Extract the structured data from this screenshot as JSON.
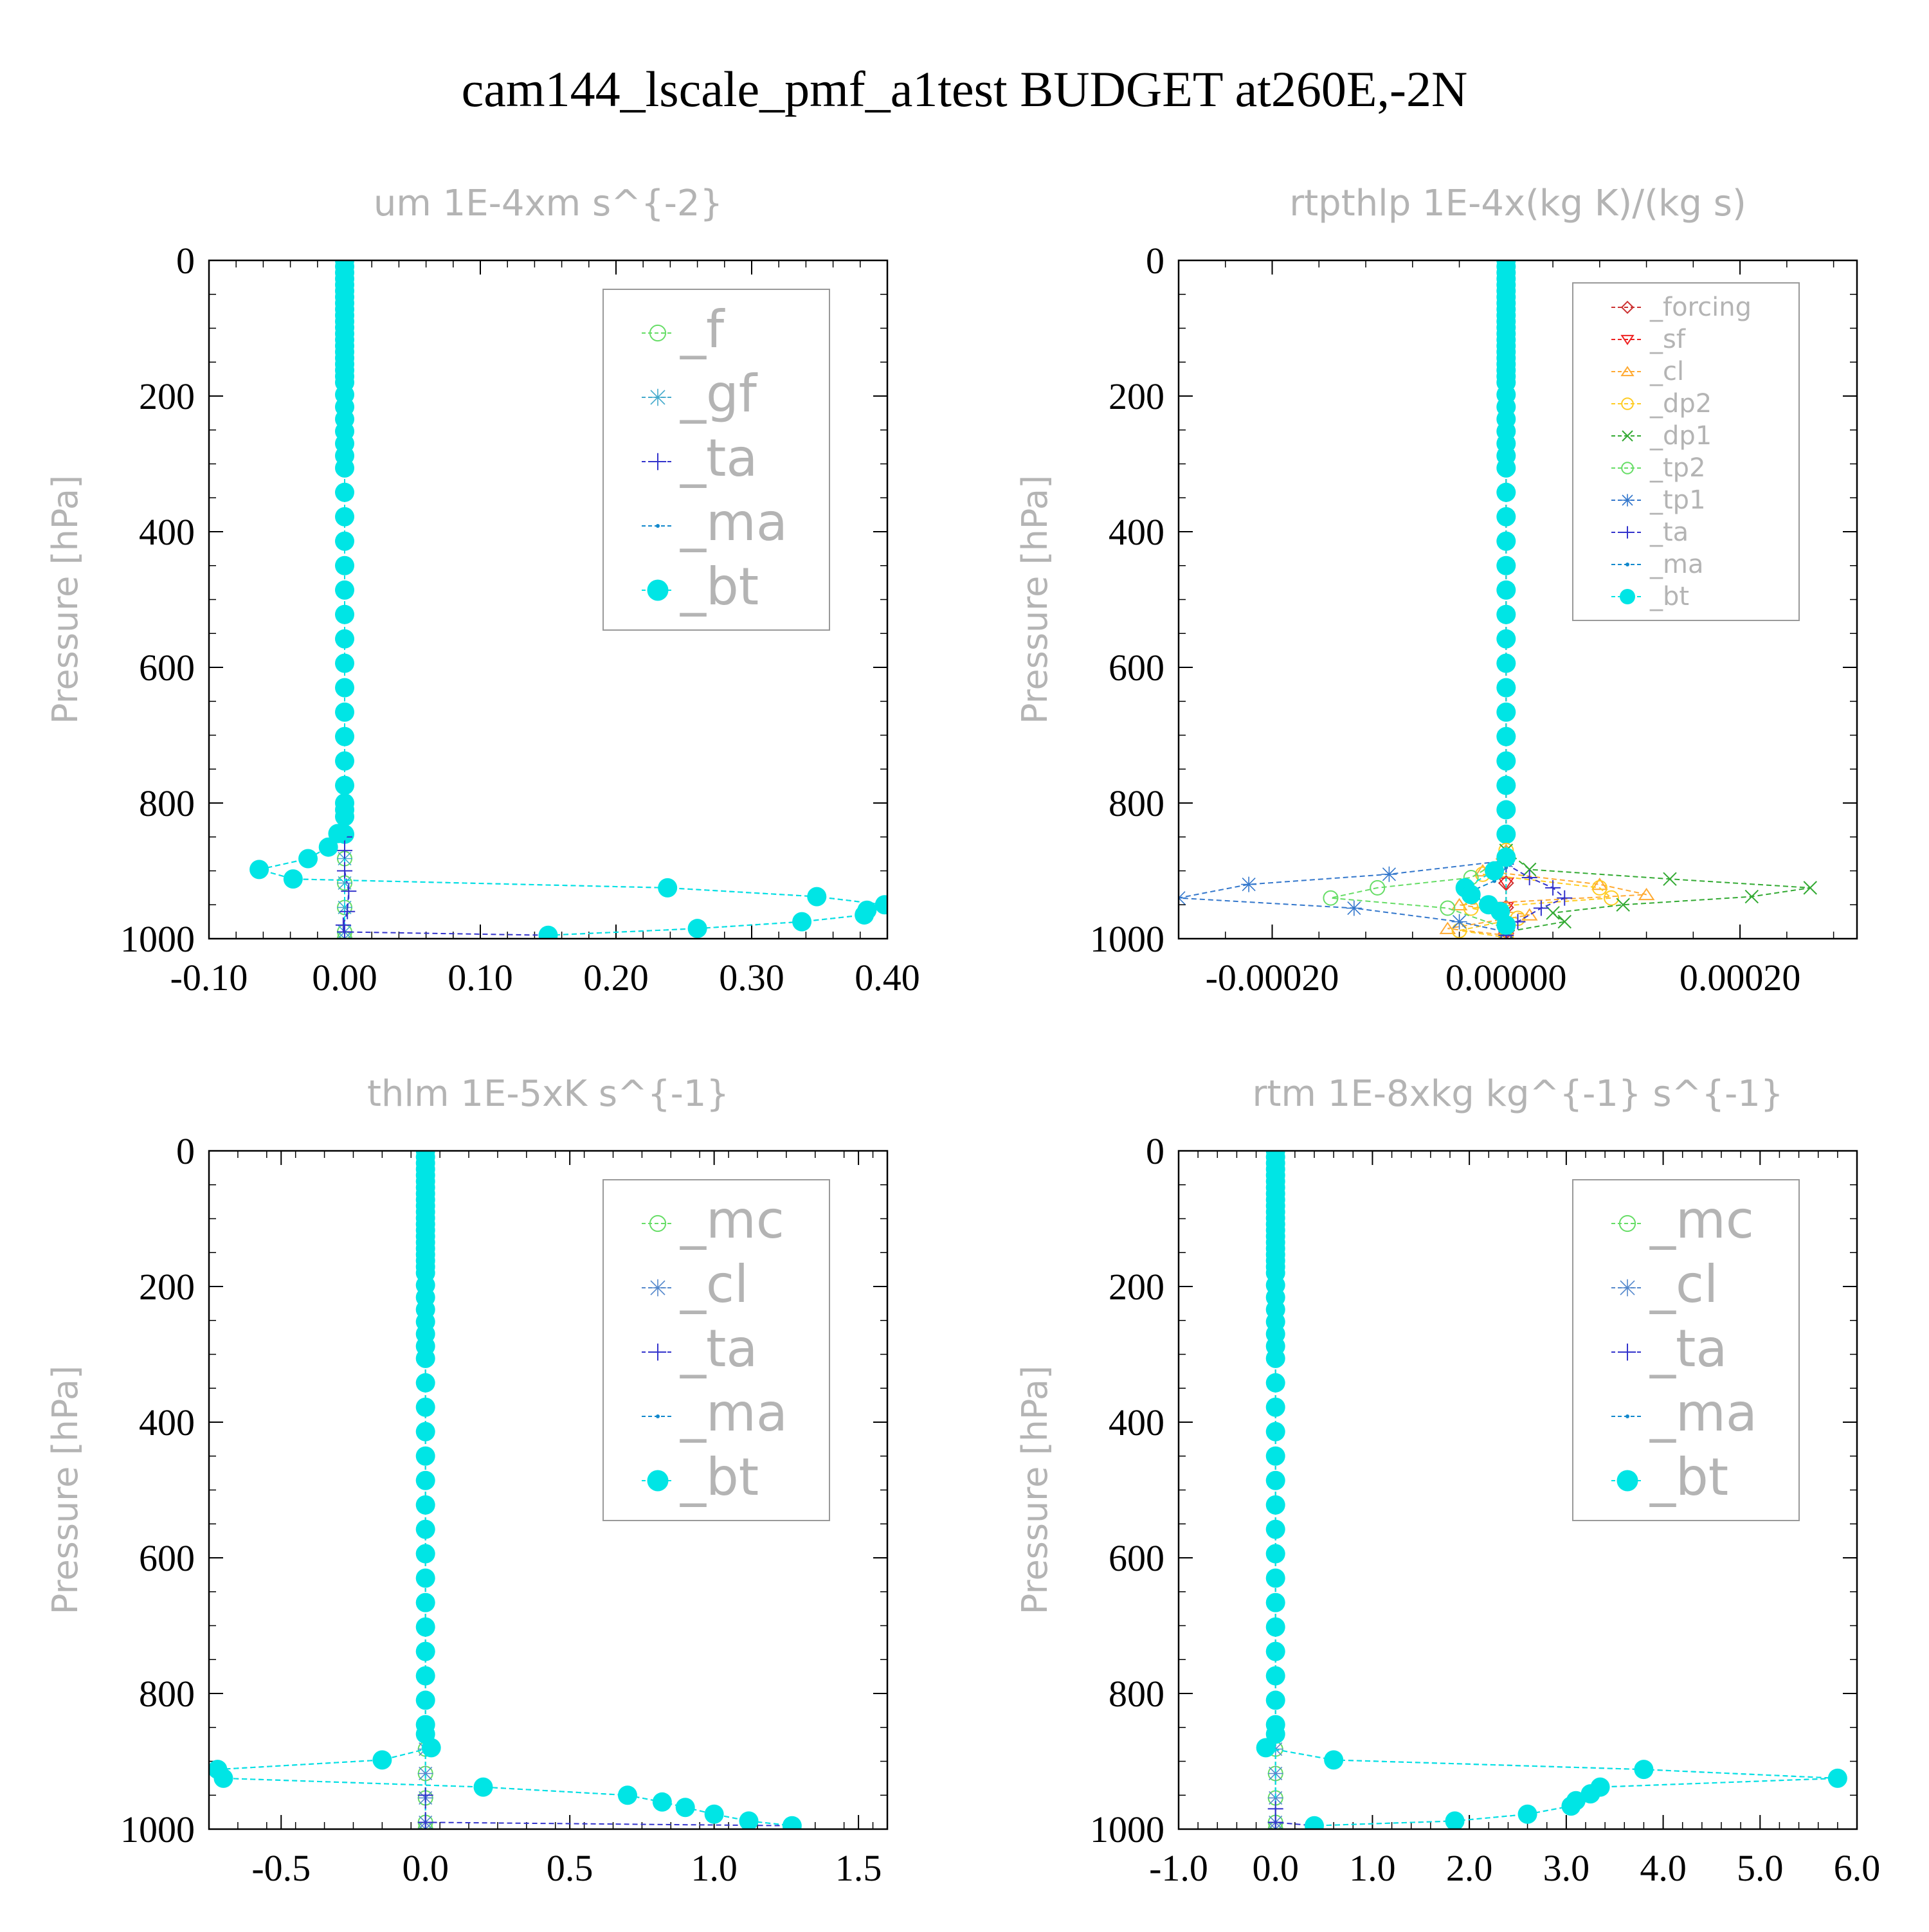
{
  "figure_title": "cam144_lscale_pmf_a1test  BUDGET at260E,-2N",
  "colors": {
    "f": "#66dd66",
    "gf": "#44aacc",
    "ta": "#3333cc",
    "ma": "#1188cc",
    "bt": "#00e5e5",
    "forcing": "#cc3333",
    "sf": "#ee2222",
    "cl": "#ffaa33",
    "dp2": "#ffcc22",
    "dp1": "#33aa33",
    "tp2": "#66dd66",
    "tp1": "#3377cc",
    "mc": "#66dd66",
    "cl_blue": "#5588cc",
    "text_gray": "#b4b4b4",
    "frame": "#000000"
  },
  "chart_data": [
    {
      "type": "line",
      "title": "um  1E-4xm s^{-2}",
      "xlabel": "",
      "ylabel": "Pressure [hPa]",
      "xlim": [
        -0.1,
        0.4
      ],
      "ylim": [
        1000,
        0
      ],
      "xticks": [
        "-0.10",
        "0.00",
        "0.10",
        "0.20",
        "0.30",
        "0.40"
      ],
      "xtick_values": [
        -0.1,
        0.0,
        0.1,
        0.2,
        0.3,
        0.4
      ],
      "yticks": [
        "0",
        "200",
        "400",
        "600",
        "800",
        "1000"
      ],
      "ytick_values": [
        0,
        200,
        400,
        600,
        800,
        1000
      ],
      "legend_placement": "top-right",
      "legend_size": "large",
      "legend": [
        {
          "label": "_f",
          "color_key": "f",
          "marker": "circle-open"
        },
        {
          "label": "_gf",
          "color_key": "gf",
          "marker": "star"
        },
        {
          "label": "_ta",
          "color_key": "ta",
          "marker": "plus"
        },
        {
          "label": "_ma",
          "color_key": "ma",
          "marker": "dot"
        },
        {
          "label": "_bt",
          "color_key": "bt",
          "marker": "circle-filled"
        }
      ],
      "series": [
        {
          "name": "_f",
          "color_key": "f",
          "marker": "circle-open",
          "zero_column": true,
          "x": [],
          "p": []
        },
        {
          "name": "_gf",
          "color_key": "gf",
          "marker": "star",
          "zero_column": true,
          "x": [],
          "p": []
        },
        {
          "name": "_ta",
          "color_key": "ta",
          "marker": "plus",
          "x": [
            0,
            0.0,
            0.0,
            0.003,
            0.002,
            -0.001,
            0.0,
            0.15
          ],
          "p": [
            850,
            870,
            900,
            930,
            960,
            980,
            990,
            995
          ]
        },
        {
          "name": "_ma",
          "color_key": "ma",
          "marker": "dot",
          "x": [
            0,
            0,
            -0.005,
            -0.012,
            -0.027,
            -0.063,
            -0.038,
            0.238,
            0.348,
            0.398,
            0.385,
            0.383,
            0.337,
            0.26,
            0.15
          ],
          "p": [
            800,
            820,
            845,
            865,
            882,
            898,
            912,
            925,
            938,
            950,
            958,
            965,
            975,
            985,
            995
          ]
        },
        {
          "name": "_bt",
          "color_key": "bt",
          "marker": "circle-filled",
          "zero_column": true,
          "x": [
            0,
            0,
            -0.005,
            -0.012,
            -0.027,
            -0.063,
            -0.038,
            0.238,
            0.348,
            0.398,
            0.385,
            0.383,
            0.337,
            0.26,
            0.15
          ],
          "p": [
            800,
            820,
            845,
            865,
            882,
            898,
            912,
            925,
            938,
            950,
            958,
            965,
            975,
            985,
            995
          ]
        }
      ]
    },
    {
      "type": "line",
      "title": "rtpthlp  1E-4x(kg K)/(kg s)",
      "xlabel": "",
      "ylabel": "Pressure [hPa]",
      "xlim": [
        -0.00028,
        0.0003
      ],
      "ylim": [
        1000,
        0
      ],
      "xticks": [
        "-0.00020",
        "0.00000",
        "0.00020"
      ],
      "xtick_values": [
        -0.0002,
        0.0,
        0.0002
      ],
      "yticks": [
        "0",
        "200",
        "400",
        "600",
        "800",
        "1000"
      ],
      "ytick_values": [
        0,
        200,
        400,
        600,
        800,
        1000
      ],
      "legend_placement": "top-right",
      "legend_size": "small",
      "legend": [
        {
          "label": "_forcing",
          "color_key": "forcing",
          "marker": "diamond"
        },
        {
          "label": "_sf",
          "color_key": "sf",
          "marker": "triangle-down"
        },
        {
          "label": "_cl",
          "color_key": "cl",
          "marker": "triangle-up"
        },
        {
          "label": "_dp2",
          "color_key": "dp2",
          "marker": "circle-open"
        },
        {
          "label": "_dp1",
          "color_key": "dp1",
          "marker": "x"
        },
        {
          "label": "_tp2",
          "color_key": "tp2",
          "marker": "circle-open"
        },
        {
          "label": "_tp1",
          "color_key": "tp1",
          "marker": "star"
        },
        {
          "label": "_ta",
          "color_key": "ta",
          "marker": "plus"
        },
        {
          "label": "_ma",
          "color_key": "ma",
          "marker": "dot"
        },
        {
          "label": "_bt",
          "color_key": "bt",
          "marker": "circle-filled"
        }
      ],
      "series": [
        {
          "name": "_forcing",
          "color_key": "forcing",
          "marker": "diamond",
          "zero_column": true,
          "x": [],
          "p": []
        },
        {
          "name": "_sf",
          "color_key": "sf",
          "marker": "triangle-down",
          "zero_column": true,
          "x": [],
          "p": []
        },
        {
          "name": "_cl",
          "color_key": "cl",
          "marker": "triangle-up",
          "x": [
            0,
            -2e-05,
            8e-05,
            0.00012,
            -4e-05,
            2e-05,
            -5e-05,
            0.0
          ],
          "p": [
            870,
            900,
            920,
            935,
            950,
            965,
            985,
            995
          ]
        },
        {
          "name": "_dp2",
          "color_key": "dp2",
          "marker": "circle-open",
          "x": [
            0,
            -2e-05,
            8e-05,
            9e-05,
            -3e-05,
            1e-05,
            -4e-05,
            0.0
          ],
          "p": [
            870,
            905,
            925,
            940,
            955,
            970,
            988,
            998
          ]
        },
        {
          "name": "_dp1",
          "color_key": "dp1",
          "marker": "x",
          "x": [
            0,
            2e-05,
            0.00014,
            0.00026,
            0.00021,
            0.0001,
            4e-05,
            5e-05,
            0.0
          ],
          "p": [
            870,
            898,
            912,
            925,
            938,
            950,
            962,
            975,
            990
          ]
        },
        {
          "name": "_tp2",
          "color_key": "tp2",
          "marker": "circle-open",
          "x": [
            0,
            -3e-05,
            -0.00011,
            -0.00015,
            -5e-05,
            0.0
          ],
          "p": [
            880,
            910,
            925,
            940,
            955,
            985
          ]
        },
        {
          "name": "_tp1",
          "color_key": "tp1",
          "marker": "star",
          "x": [
            0,
            -0.0001,
            -0.00022,
            -0.00028,
            -0.00013,
            -4e-05,
            0.0
          ],
          "p": [
            885,
            905,
            920,
            940,
            955,
            975,
            990
          ]
        },
        {
          "name": "_ta",
          "color_key": "ta",
          "marker": "plus",
          "x": [
            0,
            2e-05,
            4e-05,
            5e-05,
            3e-05,
            1e-05,
            0.0
          ],
          "p": [
            890,
            910,
            925,
            940,
            955,
            975,
            995
          ]
        },
        {
          "name": "_ma",
          "color_key": "ma",
          "marker": "dot",
          "x": [
            0,
            -1e-05,
            -3e-05,
            -2e-05,
            -1e-05,
            0.0
          ],
          "p": [
            895,
            915,
            930,
            945,
            960,
            980
          ]
        },
        {
          "name": "_bt",
          "color_key": "bt",
          "marker": "circle-filled",
          "zero_column": true,
          "x": [
            0,
            -1e-05,
            -3.5e-05,
            -3e-05,
            -1.5e-05,
            -5e-06,
            0.0
          ],
          "p": [
            880,
            900,
            925,
            935,
            950,
            960,
            980
          ]
        }
      ]
    },
    {
      "type": "line",
      "title": "thlm  1E-5xK s^{-1}",
      "xlabel": "",
      "ylabel": "Pressure [hPa]",
      "xlim": [
        -0.75,
        1.6
      ],
      "ylim": [
        1000,
        0
      ],
      "xticks": [
        "-0.5",
        "0.0",
        "0.5",
        "1.0",
        "1.5"
      ],
      "xtick_values": [
        -0.5,
        0.0,
        0.5,
        1.0,
        1.5
      ],
      "yticks": [
        "0",
        "200",
        "400",
        "600",
        "800",
        "1000"
      ],
      "ytick_values": [
        0,
        200,
        400,
        600,
        800,
        1000
      ],
      "legend_placement": "top-right",
      "legend_size": "large",
      "legend": [
        {
          "label": "_mc",
          "color_key": "mc",
          "marker": "circle-open"
        },
        {
          "label": "_cl",
          "color_key": "cl_blue",
          "marker": "star"
        },
        {
          "label": "_ta",
          "color_key": "ta",
          "marker": "plus"
        },
        {
          "label": "_ma",
          "color_key": "ma",
          "marker": "dot"
        },
        {
          "label": "_bt",
          "color_key": "bt",
          "marker": "circle-filled"
        }
      ],
      "series": [
        {
          "name": "_mc",
          "color_key": "mc",
          "marker": "circle-open",
          "zero_column": true,
          "x": [],
          "p": []
        },
        {
          "name": "_cl",
          "color_key": "cl_blue",
          "marker": "star",
          "zero_column": true,
          "x": [],
          "p": []
        },
        {
          "name": "_ta",
          "color_key": "ta",
          "marker": "plus",
          "x": [
            0,
            0.0,
            1.27
          ],
          "p": [
            950,
            990,
            995
          ]
        },
        {
          "name": "_ma",
          "color_key": "ma",
          "marker": "dot",
          "x": [
            0,
            0.02,
            -0.15,
            -0.72,
            -0.7,
            0.2,
            0.7,
            0.82,
            0.9,
            1.0,
            1.12,
            1.27
          ],
          "p": [
            860,
            880,
            898,
            912,
            925,
            938,
            950,
            960,
            968,
            978,
            988,
            995
          ]
        },
        {
          "name": "_bt",
          "color_key": "bt",
          "marker": "circle-filled",
          "zero_column": true,
          "x": [
            0,
            0.02,
            -0.15,
            -0.72,
            -0.7,
            0.2,
            0.7,
            0.82,
            0.9,
            1.0,
            1.12,
            1.27
          ],
          "p": [
            860,
            880,
            898,
            912,
            925,
            938,
            950,
            960,
            968,
            978,
            988,
            995
          ]
        }
      ]
    },
    {
      "type": "line",
      "title": "rtm  1E-8xkg kg^{-1} s^{-1}",
      "xlabel": "",
      "ylabel": "Pressure [hPa]",
      "xlim": [
        -1.0,
        6.0
      ],
      "ylim": [
        1000,
        0
      ],
      "xticks": [
        "-1.0",
        "0.0",
        "1.0",
        "2.0",
        "3.0",
        "4.0",
        "5.0",
        "6.0"
      ],
      "xtick_values": [
        -1.0,
        0.0,
        1.0,
        2.0,
        3.0,
        4.0,
        5.0,
        6.0
      ],
      "yticks": [
        "0",
        "200",
        "400",
        "600",
        "800",
        "1000"
      ],
      "ytick_values": [
        0,
        200,
        400,
        600,
        800,
        1000
      ],
      "legend_placement": "top-right",
      "legend_size": "large",
      "legend": [
        {
          "label": "_mc",
          "color_key": "mc",
          "marker": "circle-open"
        },
        {
          "label": "_cl",
          "color_key": "cl_blue",
          "marker": "star"
        },
        {
          "label": "_ta",
          "color_key": "ta",
          "marker": "plus"
        },
        {
          "label": "_ma",
          "color_key": "ma",
          "marker": "dot"
        },
        {
          "label": "_bt",
          "color_key": "bt",
          "marker": "circle-filled"
        }
      ],
      "series": [
        {
          "name": "_mc",
          "color_key": "mc",
          "marker": "circle-open",
          "zero_column": true,
          "x": [],
          "p": []
        },
        {
          "name": "_cl",
          "color_key": "cl_blue",
          "marker": "star",
          "zero_column": true,
          "x": [],
          "p": []
        },
        {
          "name": "_ta",
          "color_key": "ta",
          "marker": "plus",
          "x": [
            0,
            0.0,
            0.4
          ],
          "p": [
            970,
            990,
            995
          ]
        },
        {
          "name": "_ma",
          "color_key": "ma",
          "marker": "dot",
          "x": [
            0,
            -0.1,
            0.6,
            3.8,
            5.8,
            3.35,
            3.25,
            3.1,
            3.05,
            2.6,
            1.85,
            0.4
          ],
          "p": [
            860,
            880,
            898,
            912,
            925,
            938,
            948,
            958,
            966,
            978,
            988,
            995
          ]
        },
        {
          "name": "_bt",
          "color_key": "bt",
          "marker": "circle-filled",
          "zero_column": true,
          "x": [
            0,
            -0.1,
            0.6,
            3.8,
            5.8,
            3.35,
            3.25,
            3.1,
            3.05,
            2.6,
            1.85,
            0.4
          ],
          "p": [
            860,
            880,
            898,
            912,
            925,
            938,
            948,
            958,
            966,
            978,
            988,
            995
          ]
        }
      ]
    }
  ]
}
